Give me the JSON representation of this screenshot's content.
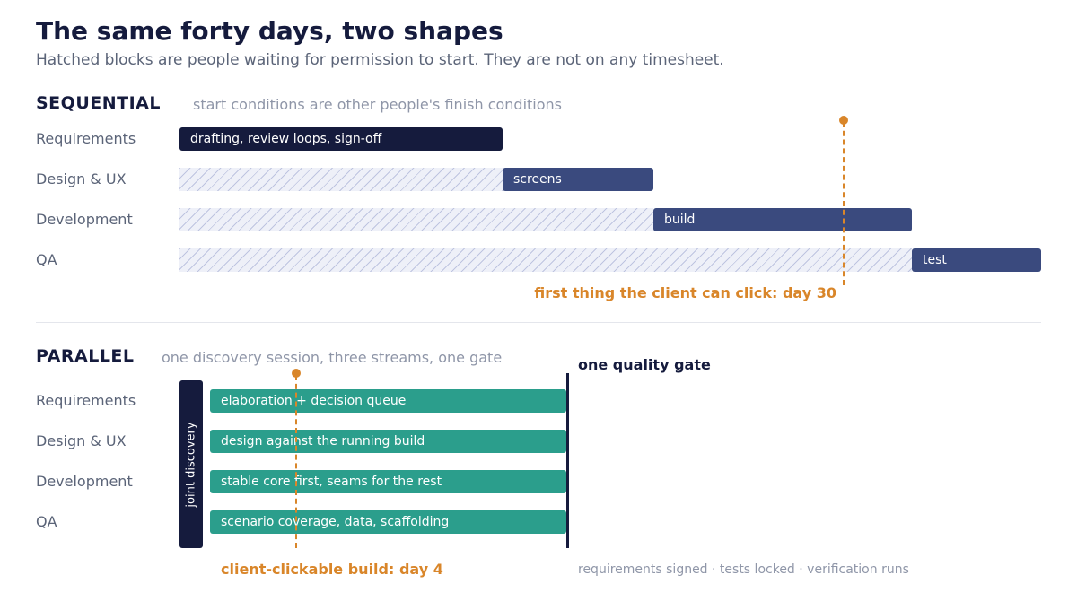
{
  "title": "The same forty days, two shapes",
  "subtitle": "Hatched blocks are people waiting for permission to start. They are not on any timesheet.",
  "colors": {
    "dark": "#151b3d",
    "navy": "#3a4a7e",
    "teal": "#2b9e8c",
    "accent": "#d9862a",
    "hatch": "#eef0f8"
  },
  "sequential": {
    "heading": "SEQUENTIAL",
    "note": "start conditions are other people's finish conditions",
    "rows": [
      {
        "label": "Requirements",
        "bar": "drafting, review loops, sign-off"
      },
      {
        "label": "Design & UX",
        "bar": "screens"
      },
      {
        "label": "Development",
        "bar": "build"
      },
      {
        "label": "QA",
        "bar": "test"
      }
    ],
    "marker": "first thing the client can click: day 30"
  },
  "parallel": {
    "heading": "PARALLEL",
    "note": "one discovery session, three streams, one gate",
    "discovery": "joint discovery",
    "rows": [
      {
        "label": "Requirements",
        "bar": "elaboration + decision queue"
      },
      {
        "label": "Design & UX",
        "bar": "design against the running build"
      },
      {
        "label": "Development",
        "bar": "stable core first, seams for the rest"
      },
      {
        "label": "QA",
        "bar": "scenario coverage, data, scaffolding"
      }
    ],
    "marker": "client-clickable build: day 4",
    "gate": {
      "label": "one quality gate",
      "note": "requirements signed · tests locked · verification runs"
    }
  }
}
